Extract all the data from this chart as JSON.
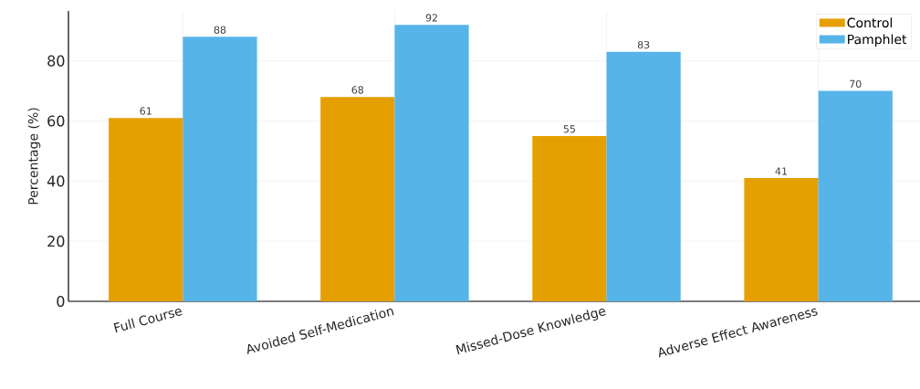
{
  "chart_data": {
    "type": "bar",
    "ylabel": "Percentage (%)",
    "categories": [
      "Full Course",
      "Avoided Self-Medication",
      "Missed-Dose Knowledge",
      "Adverse Effect Awareness"
    ],
    "series": [
      {
        "name": "Control",
        "color": "#e69f00",
        "values": [
          61,
          68,
          55,
          41
        ]
      },
      {
        "name": "Pamphlet",
        "color": "#56b4e9",
        "values": [
          88,
          92,
          83,
          70
        ]
      }
    ],
    "ylim": [
      0,
      96.6
    ],
    "yticks": [
      0,
      20,
      40,
      60,
      80
    ],
    "grid": true,
    "legend": "top right",
    "data_labels": true
  }
}
